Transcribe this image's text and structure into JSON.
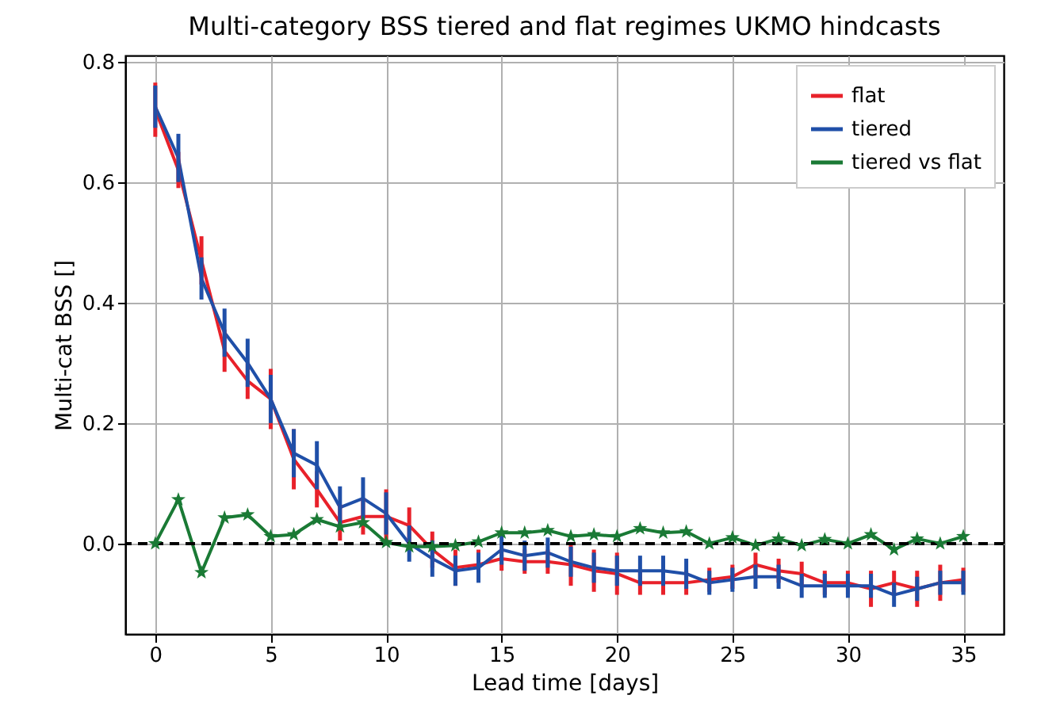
{
  "chart_data": {
    "type": "line",
    "title": "Multi-category BSS tiered and flat regimes UKMO hindcasts",
    "xlabel": "Lead time [days]",
    "ylabel": "Multi-cat BSS []",
    "x": [
      0,
      1,
      2,
      3,
      4,
      5,
      6,
      7,
      8,
      9,
      10,
      11,
      12,
      13,
      14,
      15,
      16,
      17,
      18,
      19,
      20,
      21,
      22,
      23,
      24,
      25,
      26,
      27,
      28,
      29,
      30,
      31,
      32,
      33,
      34,
      35
    ],
    "series": [
      {
        "name": "flat",
        "color": "#e8212a",
        "values": [
          0.72,
          0.62,
          0.47,
          0.32,
          0.27,
          0.24,
          0.14,
          0.09,
          0.035,
          0.045,
          0.045,
          0.03,
          -0.01,
          -0.04,
          -0.035,
          -0.025,
          -0.03,
          -0.03,
          -0.035,
          -0.045,
          -0.05,
          -0.065,
          -0.065,
          -0.065,
          -0.06,
          -0.055,
          -0.035,
          -0.045,
          -0.05,
          -0.065,
          -0.065,
          -0.075,
          -0.065,
          -0.075,
          -0.065,
          -0.06
        ],
        "errors": [
          0.045,
          0.03,
          0.04,
          0.035,
          0.03,
          0.05,
          0.05,
          0.03,
          0.03,
          0.03,
          0.045,
          0.03,
          0.03,
          0.03,
          0.025,
          0.02,
          0.02,
          0.02,
          0.035,
          0.035,
          0.035,
          0.02,
          0.02,
          0.02,
          0.02,
          0.02,
          0.02,
          0.02,
          0.02,
          0.02,
          0.02,
          0.03,
          0.02,
          0.03,
          0.03,
          0.02
        ]
      },
      {
        "name": "tiered",
        "color": "#1f4fa8",
        "values": [
          0.725,
          0.64,
          0.44,
          0.35,
          0.3,
          0.24,
          0.15,
          0.13,
          0.06,
          0.075,
          0.05,
          0.0,
          -0.025,
          -0.045,
          -0.04,
          -0.01,
          -0.02,
          -0.015,
          -0.03,
          -0.04,
          -0.045,
          -0.045,
          -0.045,
          -0.05,
          -0.065,
          -0.06,
          -0.055,
          -0.055,
          -0.07,
          -0.07,
          -0.07,
          -0.07,
          -0.085,
          -0.075,
          -0.065,
          -0.065
        ],
        "errors": [
          0.035,
          0.04,
          0.035,
          0.04,
          0.04,
          0.04,
          0.04,
          0.04,
          0.035,
          0.035,
          0.035,
          0.03,
          0.03,
          0.025,
          0.025,
          0.025,
          0.025,
          0.025,
          0.025,
          0.025,
          0.025,
          0.025,
          0.025,
          0.025,
          0.02,
          0.02,
          0.02,
          0.02,
          0.02,
          0.02,
          0.02,
          0.02,
          0.02,
          0.02,
          0.02,
          0.02
        ]
      },
      {
        "name": "tiered vs flat",
        "color": "#1a7a35",
        "marker": "star",
        "values": [
          0.0,
          0.073,
          -0.048,
          0.043,
          0.048,
          0.012,
          0.015,
          0.04,
          0.028,
          0.035,
          0.002,
          -0.005,
          -0.005,
          -0.003,
          0.003,
          0.018,
          0.018,
          0.022,
          0.012,
          0.015,
          0.012,
          0.025,
          0.018,
          0.02,
          0.0,
          0.01,
          -0.003,
          0.008,
          -0.003,
          0.007,
          0.0,
          0.015,
          -0.01,
          0.008,
          0.0,
          0.012
        ]
      }
    ],
    "xlim": [
      -1.3,
      36.75
    ],
    "ylim": [
      -0.15,
      0.81
    ],
    "xticks": [
      0,
      5,
      10,
      15,
      20,
      25,
      30,
      35
    ],
    "yticks": [
      {
        "value": 0,
        "label": "0.0"
      },
      {
        "value": 0.2,
        "label": "0.2"
      },
      {
        "value": 0.4,
        "label": "0.4"
      },
      {
        "value": 0.6,
        "label": "0.6"
      },
      {
        "value": 0.8,
        "label": "0.8"
      }
    ],
    "ref_lines": [
      {
        "axis": "y",
        "value": 0,
        "color": "#000000",
        "line_style": "dashed"
      }
    ],
    "grid": true,
    "legend": "top right"
  }
}
